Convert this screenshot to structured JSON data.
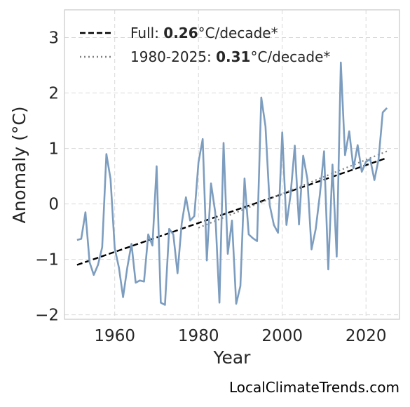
{
  "chart_data": {
    "type": "line",
    "title": "",
    "xlabel": "Year",
    "ylabel": "Anomaly (°C)",
    "xlim": [
      1948,
      2028
    ],
    "ylim": [
      -2.08,
      3.5
    ],
    "xticks": [
      1960,
      1980,
      2000,
      2020
    ],
    "yticks": [
      -2,
      -1,
      0,
      1,
      2,
      3
    ],
    "ytick_labels": [
      "−2",
      "−1",
      "0",
      "1",
      "2",
      "3"
    ],
    "grid": true,
    "legend_position": "top-left",
    "series": [
      {
        "name": "",
        "color": "#7d9dbf",
        "x": [
          1951,
          1952,
          1953,
          1954,
          1955,
          1956,
          1957,
          1958,
          1959,
          1960,
          1961,
          1962,
          1963,
          1964,
          1965,
          1966,
          1967,
          1968,
          1969,
          1970,
          1971,
          1972,
          1973,
          1974,
          1975,
          1976,
          1977,
          1978,
          1979,
          1980,
          1981,
          1982,
          1983,
          1984,
          1985,
          1986,
          1987,
          1988,
          1989,
          1990,
          1991,
          1992,
          1993,
          1994,
          1995,
          1996,
          1997,
          1998,
          1999,
          2000,
          2001,
          2002,
          2003,
          2004,
          2005,
          2006,
          2007,
          2008,
          2009,
          2010,
          2011,
          2012,
          2013,
          2014,
          2015,
          2016,
          2017,
          2018,
          2019,
          2020,
          2021,
          2022,
          2023,
          2024,
          2025
        ],
        "y": [
          -0.65,
          -0.63,
          -0.15,
          -1.05,
          -1.28,
          -1.1,
          -0.78,
          0.9,
          0.45,
          -0.8,
          -1.15,
          -1.68,
          -1.15,
          -0.72,
          -1.42,
          -1.38,
          -1.4,
          -0.55,
          -0.75,
          0.68,
          -1.78,
          -1.82,
          -0.45,
          -0.55,
          -1.25,
          -0.35,
          0.12,
          -0.3,
          -0.22,
          0.75,
          1.17,
          -1.02,
          0.37,
          -0.15,
          -1.78,
          1.1,
          -0.9,
          -0.3,
          -1.8,
          -1.48,
          0.46,
          -0.55,
          -0.62,
          -0.67,
          1.92,
          1.4,
          -0.02,
          -0.38,
          -0.52,
          1.29,
          -0.38,
          0.18,
          1.05,
          -0.37,
          0.87,
          0.45,
          -0.82,
          -0.45,
          0.18,
          0.95,
          -1.18,
          0.71,
          -0.95,
          2.55,
          0.88,
          1.31,
          0.64,
          1.06,
          0.58,
          0.76,
          0.81,
          0.43,
          0.8,
          1.65,
          1.73
        ]
      }
    ],
    "trends": [
      {
        "name_prefix": "Full: ",
        "name_value": "0.26",
        "name_suffix": "°C/decade*",
        "style": "dashed",
        "color": "#000000",
        "x": [
          1951,
          2025
        ],
        "y": [
          -1.1,
          0.83
        ]
      },
      {
        "name_prefix": "1980-2025: ",
        "name_value": "0.31",
        "name_suffix": "°C/decade*",
        "style": "dotted",
        "color": "#808080",
        "x": [
          1980,
          2025
        ],
        "y": [
          -0.43,
          0.95
        ]
      }
    ]
  },
  "credit": "LocalClimateTrends.com"
}
